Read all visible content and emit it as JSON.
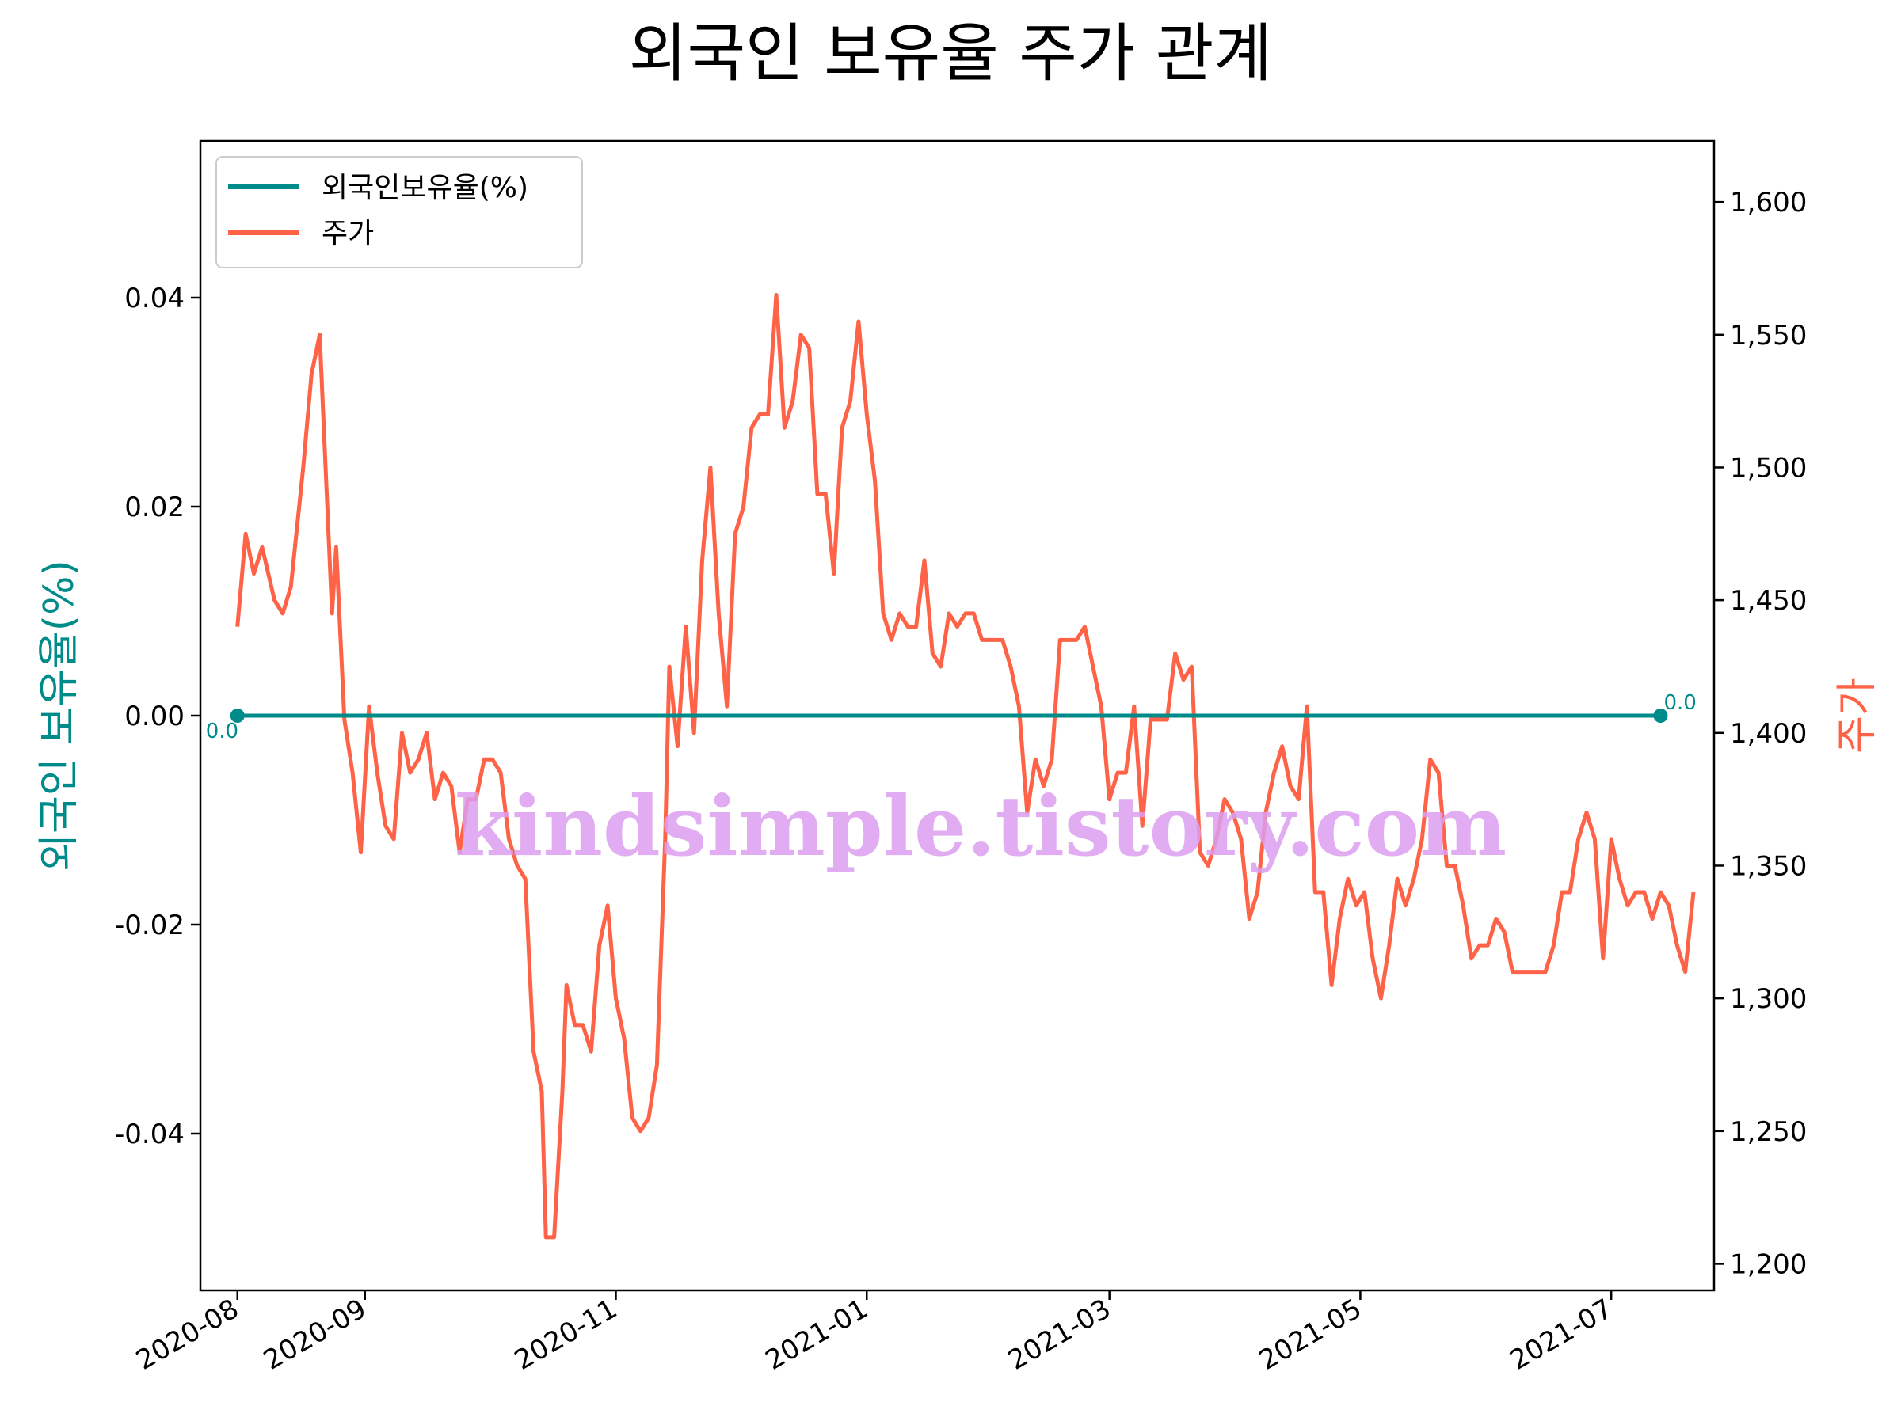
{
  "chart_data": {
    "type": "line",
    "title": "외국인 보유율 주가 관계",
    "y_left_label": "외국인 보유율(%)",
    "y_right_label": "주가",
    "watermark": "kindsimple.tistory.com",
    "x_range": [
      "2020-07-23",
      "2021-07-26"
    ],
    "y_left_range": [
      -0.055,
      0.055
    ],
    "y_right_range": [
      1190,
      1623
    ],
    "x_ticks": [
      "2020-08",
      "2020-09",
      "2020-11",
      "2021-01",
      "2021-03",
      "2021-05",
      "2021-07"
    ],
    "x_tick_dates": [
      "2020-08-01",
      "2020-09-01",
      "2020-11-01",
      "2021-01-01",
      "2021-03-01",
      "2021-05-01",
      "2021-07-01"
    ],
    "y_left_ticks": [
      -0.04,
      -0.02,
      0.0,
      0.02,
      0.04
    ],
    "y_left_tick_labels": [
      "-0.04",
      "-0.02",
      "0.00",
      "0.02",
      "0.04"
    ],
    "y_right_ticks": [
      1200,
      1250,
      1300,
      1350,
      1400,
      1450,
      1500,
      1550,
      1600
    ],
    "y_right_tick_labels": [
      "1,200",
      "1,250",
      "1,300",
      "1,350",
      "1,400",
      "1,450",
      "1,500",
      "1,550",
      "1,600"
    ],
    "legend": {
      "placement": "upper-left",
      "entries": [
        "외국인보유율(%)",
        "주가"
      ]
    },
    "colors": {
      "foreign": "#008b8b",
      "price": "#ff6347",
      "watermark": "#dc9ef0"
    },
    "annotations": [
      {
        "text": "0.0",
        "date": "2020-08-01",
        "value": 0.0
      },
      {
        "text": "0.0",
        "date": "2021-07-13",
        "value": 0.0
      }
    ],
    "series": [
      {
        "name": "외국인보유율(%)",
        "axis": "left",
        "points": [
          [
            "2020-08-01",
            0.0
          ],
          [
            "2021-07-13",
            0.0
          ]
        ]
      },
      {
        "name": "주가",
        "axis": "right",
        "points": [
          [
            "2020-08-01",
            1440
          ],
          [
            "2020-08-03",
            1475
          ],
          [
            "2020-08-05",
            1460
          ],
          [
            "2020-08-07",
            1470
          ],
          [
            "2020-08-10",
            1450
          ],
          [
            "2020-08-12",
            1445
          ],
          [
            "2020-08-14",
            1455
          ],
          [
            "2020-08-17",
            1500
          ],
          [
            "2020-08-19",
            1535
          ],
          [
            "2020-08-21",
            1550
          ],
          [
            "2020-08-24",
            1445
          ],
          [
            "2020-08-25",
            1470
          ],
          [
            "2020-08-27",
            1405
          ],
          [
            "2020-08-29",
            1385
          ],
          [
            "2020-08-31",
            1355
          ],
          [
            "2020-09-02",
            1410
          ],
          [
            "2020-09-04",
            1385
          ],
          [
            "2020-09-06",
            1365
          ],
          [
            "2020-09-08",
            1360
          ],
          [
            "2020-09-10",
            1400
          ],
          [
            "2020-09-12",
            1385
          ],
          [
            "2020-09-14",
            1390
          ],
          [
            "2020-09-16",
            1400
          ],
          [
            "2020-09-18",
            1375
          ],
          [
            "2020-09-20",
            1385
          ],
          [
            "2020-09-22",
            1380
          ],
          [
            "2020-09-24",
            1355
          ],
          [
            "2020-09-26",
            1375
          ],
          [
            "2020-09-28",
            1375
          ],
          [
            "2020-09-30",
            1390
          ],
          [
            "2020-10-02",
            1390
          ],
          [
            "2020-10-04",
            1385
          ],
          [
            "2020-10-06",
            1360
          ],
          [
            "2020-10-08",
            1350
          ],
          [
            "2020-10-10",
            1345
          ],
          [
            "2020-10-12",
            1280
          ],
          [
            "2020-10-14",
            1265
          ],
          [
            "2020-10-15",
            1210
          ],
          [
            "2020-10-17",
            1210
          ],
          [
            "2020-10-19",
            1265
          ],
          [
            "2020-10-20",
            1305
          ],
          [
            "2020-10-22",
            1290
          ],
          [
            "2020-10-24",
            1290
          ],
          [
            "2020-10-26",
            1280
          ],
          [
            "2020-10-28",
            1320
          ],
          [
            "2020-10-30",
            1335
          ],
          [
            "2020-11-01",
            1300
          ],
          [
            "2020-11-03",
            1285
          ],
          [
            "2020-11-05",
            1255
          ],
          [
            "2020-11-07",
            1250
          ],
          [
            "2020-11-09",
            1255
          ],
          [
            "2020-11-11",
            1275
          ],
          [
            "2020-11-13",
            1360
          ],
          [
            "2020-11-14",
            1425
          ],
          [
            "2020-11-16",
            1395
          ],
          [
            "2020-11-18",
            1440
          ],
          [
            "2020-11-20",
            1400
          ],
          [
            "2020-11-22",
            1465
          ],
          [
            "2020-11-24",
            1500
          ],
          [
            "2020-11-26",
            1445
          ],
          [
            "2020-11-28",
            1410
          ],
          [
            "2020-11-30",
            1475
          ],
          [
            "2020-12-02",
            1485
          ],
          [
            "2020-12-04",
            1515
          ],
          [
            "2020-12-06",
            1520
          ],
          [
            "2020-12-08",
            1520
          ],
          [
            "2020-12-10",
            1565
          ],
          [
            "2020-12-12",
            1515
          ],
          [
            "2020-12-14",
            1525
          ],
          [
            "2020-12-16",
            1550
          ],
          [
            "2020-12-18",
            1545
          ],
          [
            "2020-12-20",
            1490
          ],
          [
            "2020-12-22",
            1490
          ],
          [
            "2020-12-24",
            1460
          ],
          [
            "2020-12-26",
            1515
          ],
          [
            "2020-12-28",
            1525
          ],
          [
            "2020-12-30",
            1555
          ],
          [
            "2021-01-01",
            1520
          ],
          [
            "2021-01-03",
            1495
          ],
          [
            "2021-01-05",
            1445
          ],
          [
            "2021-01-07",
            1435
          ],
          [
            "2021-01-09",
            1445
          ],
          [
            "2021-01-11",
            1440
          ],
          [
            "2021-01-13",
            1440
          ],
          [
            "2021-01-15",
            1465
          ],
          [
            "2021-01-17",
            1430
          ],
          [
            "2021-01-19",
            1425
          ],
          [
            "2021-01-21",
            1445
          ],
          [
            "2021-01-23",
            1440
          ],
          [
            "2021-01-25",
            1445
          ],
          [
            "2021-01-27",
            1445
          ],
          [
            "2021-01-29",
            1435
          ],
          [
            "2021-02-01",
            1435
          ],
          [
            "2021-02-03",
            1435
          ],
          [
            "2021-02-05",
            1425
          ],
          [
            "2021-02-07",
            1410
          ],
          [
            "2021-02-09",
            1370
          ],
          [
            "2021-02-11",
            1390
          ],
          [
            "2021-02-13",
            1380
          ],
          [
            "2021-02-15",
            1390
          ],
          [
            "2021-02-17",
            1435
          ],
          [
            "2021-02-19",
            1435
          ],
          [
            "2021-02-21",
            1435
          ],
          [
            "2021-02-23",
            1440
          ],
          [
            "2021-02-25",
            1425
          ],
          [
            "2021-02-27",
            1410
          ],
          [
            "2021-03-01",
            1375
          ],
          [
            "2021-03-03",
            1385
          ],
          [
            "2021-03-05",
            1385
          ],
          [
            "2021-03-07",
            1410
          ],
          [
            "2021-03-09",
            1365
          ],
          [
            "2021-03-11",
            1405
          ],
          [
            "2021-03-13",
            1405
          ],
          [
            "2021-03-15",
            1405
          ],
          [
            "2021-03-17",
            1430
          ],
          [
            "2021-03-19",
            1420
          ],
          [
            "2021-03-21",
            1425
          ],
          [
            "2021-03-23",
            1355
          ],
          [
            "2021-03-25",
            1350
          ],
          [
            "2021-03-27",
            1360
          ],
          [
            "2021-03-29",
            1375
          ],
          [
            "2021-03-31",
            1370
          ],
          [
            "2021-04-02",
            1360
          ],
          [
            "2021-04-04",
            1330
          ],
          [
            "2021-04-06",
            1340
          ],
          [
            "2021-04-08",
            1370
          ],
          [
            "2021-04-10",
            1385
          ],
          [
            "2021-04-12",
            1395
          ],
          [
            "2021-04-14",
            1380
          ],
          [
            "2021-04-16",
            1375
          ],
          [
            "2021-04-18",
            1410
          ],
          [
            "2021-04-20",
            1340
          ],
          [
            "2021-04-22",
            1340
          ],
          [
            "2021-04-24",
            1305
          ],
          [
            "2021-04-26",
            1330
          ],
          [
            "2021-04-28",
            1345
          ],
          [
            "2021-04-30",
            1335
          ],
          [
            "2021-05-02",
            1340
          ],
          [
            "2021-05-04",
            1315
          ],
          [
            "2021-05-06",
            1300
          ],
          [
            "2021-05-08",
            1320
          ],
          [
            "2021-05-10",
            1345
          ],
          [
            "2021-05-12",
            1335
          ],
          [
            "2021-05-14",
            1345
          ],
          [
            "2021-05-16",
            1360
          ],
          [
            "2021-05-18",
            1390
          ],
          [
            "2021-05-20",
            1385
          ],
          [
            "2021-05-22",
            1350
          ],
          [
            "2021-05-24",
            1350
          ],
          [
            "2021-05-26",
            1335
          ],
          [
            "2021-05-28",
            1315
          ],
          [
            "2021-05-30",
            1320
          ],
          [
            "2021-06-01",
            1320
          ],
          [
            "2021-06-03",
            1330
          ],
          [
            "2021-06-05",
            1325
          ],
          [
            "2021-06-07",
            1310
          ],
          [
            "2021-06-09",
            1310
          ],
          [
            "2021-06-11",
            1310
          ],
          [
            "2021-06-13",
            1310
          ],
          [
            "2021-06-15",
            1310
          ],
          [
            "2021-06-17",
            1320
          ],
          [
            "2021-06-19",
            1340
          ],
          [
            "2021-06-21",
            1340
          ],
          [
            "2021-06-23",
            1360
          ],
          [
            "2021-06-25",
            1370
          ],
          [
            "2021-06-27",
            1360
          ],
          [
            "2021-06-29",
            1315
          ],
          [
            "2021-07-01",
            1360
          ],
          [
            "2021-07-03",
            1345
          ],
          [
            "2021-07-05",
            1335
          ],
          [
            "2021-07-07",
            1340
          ],
          [
            "2021-07-09",
            1340
          ],
          [
            "2021-07-11",
            1330
          ],
          [
            "2021-07-13",
            1340
          ],
          [
            "2021-07-15",
            1335
          ],
          [
            "2021-07-17",
            1320
          ],
          [
            "2021-07-19",
            1310
          ],
          [
            "2021-07-21",
            1340
          ]
        ]
      }
    ]
  }
}
